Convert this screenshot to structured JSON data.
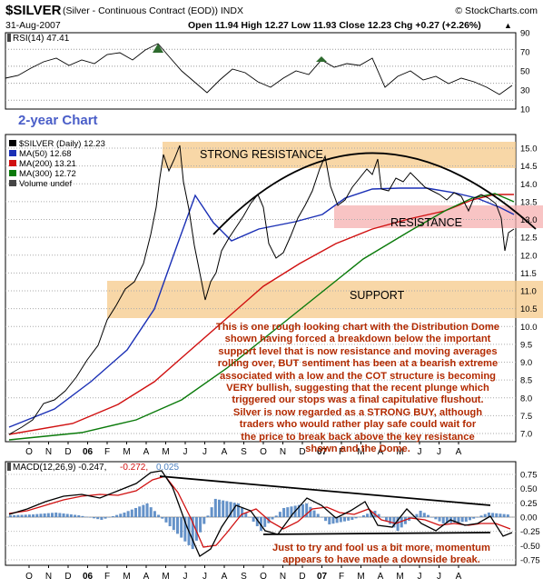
{
  "header": {
    "symbol": "$SILVER",
    "description": "(Silver - Continuous Contract (EOD)) INDX",
    "credit": "© StockCharts.com",
    "date": "31-Aug-2007",
    "quote": "Open 11.94  High 12.27  Low 11.93  Close 12.23  Chg +0.27 (+2.26%)",
    "quote_arrow": "▲"
  },
  "rsi": {
    "label": "RSI(14) 47.41",
    "ticks": [
      "90",
      "70",
      "50",
      "30",
      "10"
    ]
  },
  "price": {
    "chart_title": "2-year Chart",
    "legend": [
      {
        "text": "$SILVER (Daily) 12.23",
        "color": "#000000"
      },
      {
        "text": "MA(50) 12.68",
        "color": "#1a2fb5"
      },
      {
        "text": "MA(200) 13.21",
        "color": "#d01010"
      },
      {
        "text": "MA(300) 12.72",
        "color": "#0a7a0a"
      },
      {
        "text": "Volume undef",
        "color": "#444444"
      }
    ],
    "ticks": [
      "15.0",
      "14.5",
      "14.0",
      "13.5",
      "13.0",
      "12.5",
      "12.0",
      "11.5",
      "11.0",
      "10.5",
      "10.0",
      "9.5",
      "9.0",
      "8.5",
      "8.0",
      "7.5",
      "7.0"
    ],
    "zones": {
      "strong_resistance": "STRONG RESISTANCE",
      "resistance": "RESISTANCE",
      "support": "SUPPORT"
    },
    "annotation": "This is one rough looking chart with the Distribution Dome\nshown having forced a breakdown below the important\nsupport level that is now resistance and moving averages\nrolling over, BUT sentiment has been at a bearish extreme\nassociated with a low and the COT structure is becoming\nVERY bullish, suggesting that the recent plunge which\ntriggered our stops was a final capitulative flushout.\nSilver is now regarded as a STRONG BUY, although\ntraders who would rather play safe could wait for\nthe price to break back above the key resistance\nshown and the Dome."
  },
  "x_axis": [
    "O",
    "N",
    "D",
    "06",
    "F",
    "M",
    "A",
    "M",
    "J",
    "J",
    "A",
    "S",
    "O",
    "N",
    "D",
    "07",
    "F",
    "M",
    "A",
    "M",
    "J",
    "J",
    "A"
  ],
  "macd": {
    "label_a": "MACD(12,26,9) -0.247,",
    "label_b": "-0.272,",
    "label_c": "0.025",
    "ticks": [
      "0.75",
      "0.50",
      "0.25",
      "0.00",
      "-0.25",
      "-0.50",
      "-0.75"
    ],
    "annotation": "Just to try and fool us a bit more, momentum\nappears to have made a downside break."
  },
  "colors": {
    "zone_fill": "#f5c98a",
    "ma50": "#1a2fb5",
    "ma200": "#d01010",
    "ma300": "#0a7a0a",
    "annotation_text": "#b22a00",
    "title_blue": "#4a5ec8",
    "histogram": "#4a7fc0"
  },
  "chart_data": [
    {
      "type": "line",
      "name": "RSI(14)",
      "ylim": [
        10,
        90
      ],
      "x": [
        "2005-10",
        "2005-11",
        "2005-12",
        "2006-01",
        "2006-02",
        "2006-03",
        "2006-04",
        "2006-05",
        "2006-06",
        "2006-07",
        "2006-08",
        "2006-09",
        "2006-10",
        "2006-11",
        "2006-12",
        "2007-01",
        "2007-02",
        "2007-03",
        "2007-04",
        "2007-05",
        "2007-06",
        "2007-07",
        "2007-08"
      ],
      "values": [
        55,
        62,
        68,
        72,
        60,
        64,
        80,
        52,
        35,
        58,
        55,
        42,
        58,
        60,
        55,
        60,
        66,
        48,
        55,
        50,
        45,
        50,
        47.41
      ]
    },
    {
      "type": "line",
      "ylim": [
        7.0,
        15.0
      ],
      "x": [
        "2005-10",
        "2005-11",
        "2005-12",
        "2006-01",
        "2006-02",
        "2006-03",
        "2006-04",
        "2006-05",
        "2006-06",
        "2006-07",
        "2006-08",
        "2006-09",
        "2006-10",
        "2006-11",
        "2006-12",
        "2007-01",
        "2007-02",
        "2007-03",
        "2007-04",
        "2007-05",
        "2007-06",
        "2007-07",
        "2007-08"
      ],
      "series": [
        {
          "name": "$SILVER (Daily)",
          "values": [
            7.1,
            7.6,
            8.7,
            9.2,
            9.8,
            10.8,
            13.5,
            13.2,
            10.2,
            11.8,
            12.5,
            11.2,
            12.0,
            13.8,
            13.2,
            13.4,
            14.2,
            13.3,
            13.6,
            13.2,
            12.8,
            12.8,
            12.23
          ]
        },
        {
          "name": "MA(50)",
          "values": [
            7.3,
            7.5,
            8.0,
            8.7,
            9.3,
            10.0,
            11.3,
            12.8,
            12.0,
            11.3,
            11.6,
            11.6,
            11.7,
            12.4,
            13.0,
            12.9,
            13.1,
            13.4,
            13.5,
            13.4,
            13.2,
            12.8,
            12.68
          ]
        },
        {
          "name": "MA(200)",
          "values": [
            7.0,
            7.1,
            7.3,
            7.6,
            7.9,
            8.3,
            8.9,
            9.5,
            10.0,
            10.4,
            10.8,
            11.1,
            11.4,
            11.8,
            12.1,
            12.3,
            12.5,
            12.7,
            12.9,
            13.1,
            13.2,
            13.2,
            13.21
          ]
        },
        {
          "name": "MA(300)",
          "values": [
            6.9,
            7.0,
            7.1,
            7.2,
            7.4,
            7.6,
            7.9,
            8.3,
            8.7,
            9.1,
            9.5,
            9.9,
            10.3,
            10.7,
            11.0,
            11.3,
            11.6,
            11.9,
            12.1,
            12.3,
            12.5,
            12.6,
            12.72
          ]
        }
      ]
    },
    {
      "type": "line",
      "ylim": [
        -0.75,
        0.75
      ],
      "x": [
        "2005-10",
        "2005-11",
        "2005-12",
        "2006-01",
        "2006-02",
        "2006-03",
        "2006-04",
        "2006-05",
        "2006-06",
        "2006-07",
        "2006-08",
        "2006-09",
        "2006-10",
        "2006-11",
        "2006-12",
        "2007-01",
        "2007-02",
        "2007-03",
        "2007-04",
        "2007-05",
        "2007-06",
        "2007-07",
        "2007-08"
      ],
      "series": [
        {
          "name": "MACD(12,26,9)",
          "values": [
            0.05,
            0.15,
            0.3,
            0.35,
            0.25,
            0.4,
            0.75,
            0.45,
            -0.65,
            -0.05,
            0.3,
            -0.2,
            0.1,
            0.45,
            0.2,
            0.15,
            0.35,
            -0.1,
            0.15,
            -0.05,
            -0.1,
            0.05,
            -0.247
          ]
        },
        {
          "values": [
            0.03,
            0.12,
            0.25,
            0.33,
            0.28,
            0.35,
            0.6,
            0.55,
            -0.3,
            -0.25,
            0.15,
            -0.05,
            0.0,
            0.3,
            0.28,
            0.18,
            0.28,
            0.05,
            0.08,
            0.02,
            -0.05,
            0.0,
            -0.272
          ]
        }
      ]
    }
  ]
}
